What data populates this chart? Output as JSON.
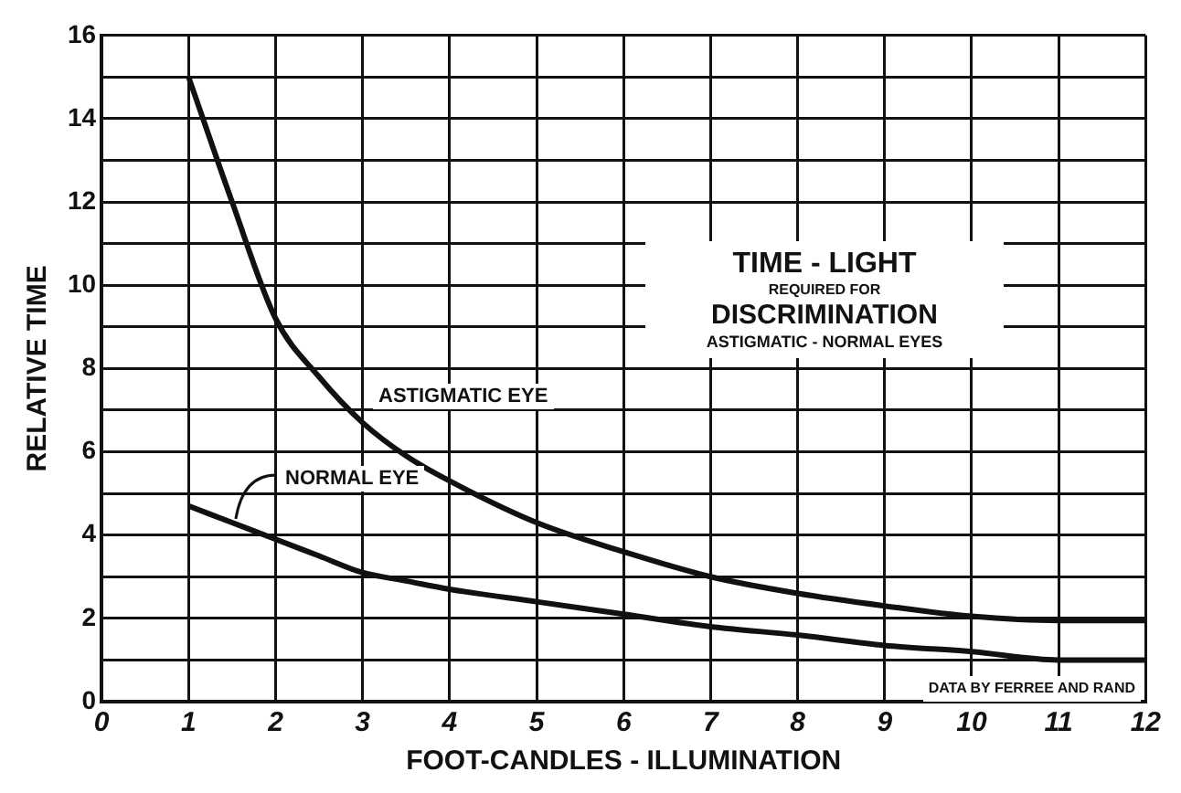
{
  "chart_data": {
    "type": "line",
    "title": "TIME - LIGHT",
    "subtitle": "REQUIRED FOR DISCRIMINATION",
    "xlabel": "FOOT-CANDLES - ILLUMINATION",
    "ylabel": "RELATIVE TIME",
    "annotations": [
      "ASTIGMATIC - NORMAL EYES",
      "DATA BY FERREE AND RAND"
    ],
    "x": [
      1,
      1.5,
      2,
      2.5,
      3,
      3.5,
      4,
      5,
      6,
      7,
      8,
      9,
      10,
      11,
      12
    ],
    "series": [
      {
        "name": "ASTIGMATIC EYE",
        "color": "#111111",
        "values": [
          15,
          12,
          9.2,
          7.8,
          6.7,
          5.9,
          5.3,
          4.3,
          3.6,
          3.0,
          2.6,
          2.3,
          2.05,
          1.95,
          1.95
        ]
      },
      {
        "name": "NORMAL EYE",
        "color": "#111111",
        "values": [
          4.7,
          4.3,
          3.9,
          3.5,
          3.1,
          2.9,
          2.7,
          2.4,
          2.1,
          1.8,
          1.6,
          1.35,
          1.2,
          1.0,
          1.0
        ]
      }
    ],
    "xlim": [
      0,
      12
    ],
    "xticks": [
      0,
      1,
      2,
      3,
      4,
      5,
      6,
      7,
      8,
      9,
      10,
      11,
      12
    ],
    "ylim": [
      0,
      16
    ],
    "yticks": [
      0,
      {
        "value": 1,
        "label": null
      },
      2,
      {
        "value": 3,
        "label": null
      },
      4,
      {
        "value": 5,
        "label": null
      },
      6,
      {
        "value": 7,
        "label": null
      },
      8,
      {
        "value": 9,
        "label": null
      },
      10,
      {
        "value": 11,
        "label": null
      },
      12,
      {
        "value": 13,
        "label": null
      },
      14,
      {
        "value": 15,
        "label": null
      },
      16
    ],
    "grid": true,
    "legend": false,
    "marker": "none",
    "line_style": "solid"
  }
}
